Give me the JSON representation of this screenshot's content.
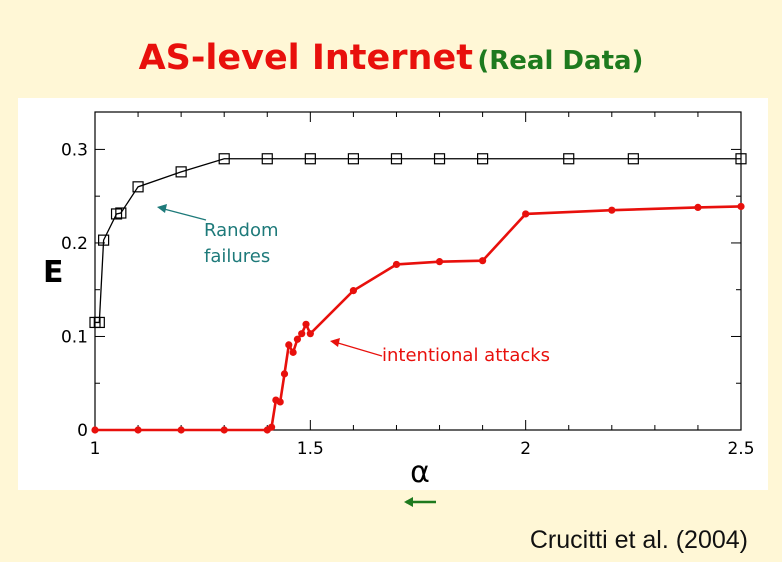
{
  "slide": {
    "title_main": "AS-level Internet",
    "title_sub": "(Real Data)",
    "citation": "Crucitti et al. (2004)"
  },
  "nav": {
    "icon": "left-arrow-icon",
    "color": "#1E7A1E"
  },
  "colors": {
    "title": "#E8100C",
    "subtitle": "#1E7A1E",
    "random": "#000000",
    "attack": "#E8100C",
    "annotation_random": "#1E7A7A"
  },
  "chart_data": {
    "type": "line",
    "xlabel": "α",
    "ylabel": "E",
    "xlim": [
      1,
      2.5
    ],
    "ylim": [
      0,
      0.34
    ],
    "xticks": [
      1,
      1.5,
      2,
      2.5
    ],
    "xtick_labels": [
      "1",
      "1.5",
      "2",
      "2.5"
    ],
    "yticks": [
      0,
      0.1,
      0.2,
      0.3
    ],
    "ytick_labels": [
      "0",
      "0.1",
      "0.2",
      "0.3"
    ],
    "grid": false,
    "series": [
      {
        "name": "Random failures",
        "color": "#000000",
        "marker": "open-square",
        "x": [
          1.0,
          1.01,
          1.02,
          1.05,
          1.06,
          1.1,
          1.2,
          1.3,
          1.4,
          1.5,
          1.6,
          1.7,
          1.8,
          1.9,
          2.1,
          2.25,
          2.5
        ],
        "y": [
          0.115,
          0.115,
          0.203,
          0.231,
          0.232,
          0.26,
          0.276,
          0.29,
          0.29,
          0.29,
          0.29,
          0.29,
          0.29,
          0.29,
          0.29,
          0.29,
          0.29
        ]
      },
      {
        "name": "intentional attacks",
        "color": "#E8100C",
        "marker": "filled-dot",
        "x": [
          1.0,
          1.1,
          1.2,
          1.3,
          1.4,
          1.41,
          1.42,
          1.43,
          1.44,
          1.45,
          1.46,
          1.47,
          1.48,
          1.49,
          1.5,
          1.6,
          1.7,
          1.8,
          1.9,
          2.0,
          2.2,
          2.4,
          2.5
        ],
        "y": [
          0,
          0,
          0,
          0,
          0,
          0.003,
          0.032,
          0.03,
          0.06,
          0.091,
          0.083,
          0.097,
          0.103,
          0.113,
          0.103,
          0.149,
          0.177,
          0.18,
          0.181,
          0.231,
          0.235,
          0.238,
          0.239
        ]
      }
    ],
    "annotations": [
      {
        "text_lines": [
          "Random",
          "failures"
        ],
        "series": 0,
        "color": "#1E7A7A"
      },
      {
        "text_lines": [
          "intentional attacks"
        ],
        "series": 1,
        "color": "#E8100C"
      }
    ]
  }
}
